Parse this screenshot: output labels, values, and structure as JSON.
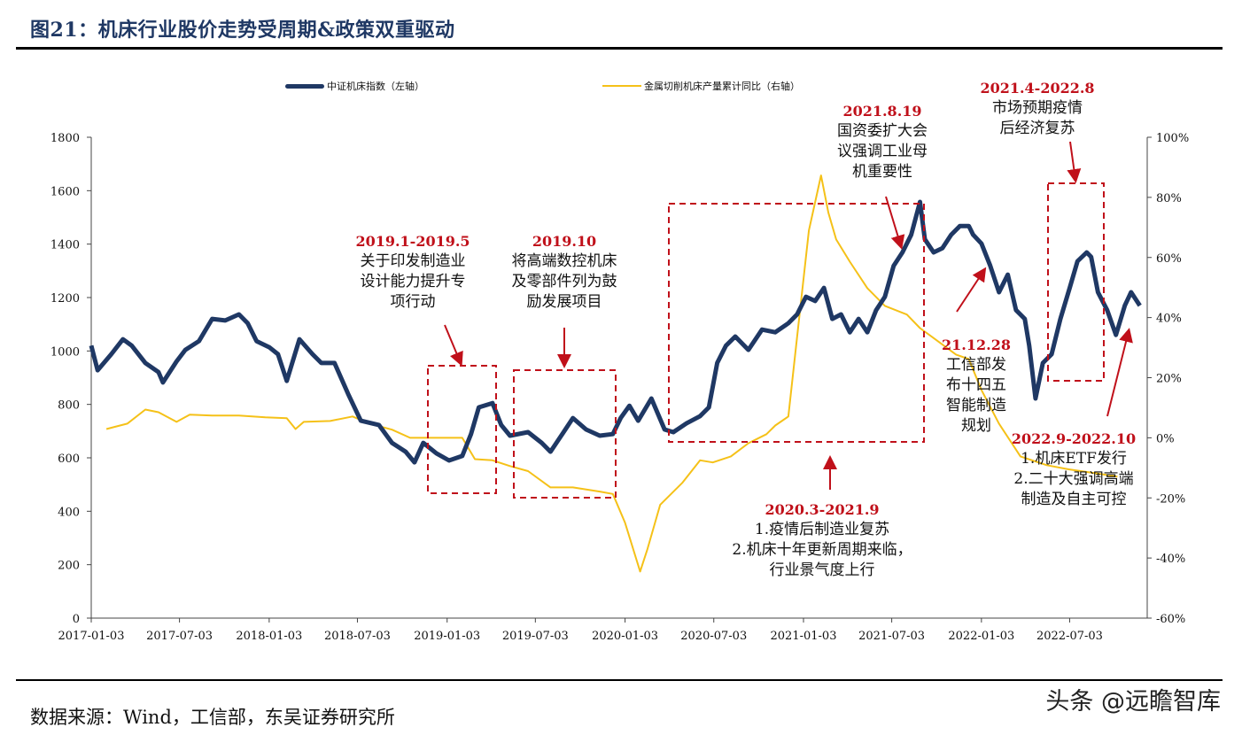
{
  "title": "图21：机床行业股价走势受周期&政策双重驱动",
  "source": "数据来源：Wind，工信部，东吴证券研究所",
  "watermark": "头条 @远瞻智库",
  "colors": {
    "index": "#1f3864",
    "production": "#f5c118",
    "annotation": "#c0101a",
    "title": "#1f3864"
  },
  "chart_data": {
    "type": "line",
    "title": "",
    "legend_position": "top",
    "grid": false,
    "x_ticks": [
      "2017-01-03",
      "2017-07-03",
      "2018-01-03",
      "2018-07-03",
      "2019-01-03",
      "2019-07-03",
      "2020-01-03",
      "2020-07-03",
      "2021-01-03",
      "2021-07-03",
      "2022-01-03",
      "2022-07-03"
    ],
    "y_left": {
      "range": [
        0,
        1800
      ],
      "ticks": [
        "0",
        "200",
        "400",
        "600",
        "800",
        "1000",
        "1200",
        "1400",
        "1600",
        "1800"
      ]
    },
    "y_right": {
      "range": [
        -60,
        100
      ],
      "unit": "%",
      "ticks": [
        "-60%",
        "-40%",
        "-20%",
        "0%",
        "20%",
        "40%",
        "60%",
        "80%",
        "100%"
      ]
    },
    "series": [
      {
        "name": "中证机床指数（左轴）",
        "axis": "left",
        "color": "#1f3864",
        "points": [
          [
            "2017-01-03",
            1020
          ],
          [
            "2017-01-16",
            928
          ],
          [
            "2017-02-13",
            988
          ],
          [
            "2017-03-09",
            1044
          ],
          [
            "2017-03-27",
            1020
          ],
          [
            "2017-04-24",
            955
          ],
          [
            "2017-05-21",
            921
          ],
          [
            "2017-05-30",
            882
          ],
          [
            "2017-06-27",
            961
          ],
          [
            "2017-07-15",
            1004
          ],
          [
            "2017-08-12",
            1037
          ],
          [
            "2017-09-08",
            1120
          ],
          [
            "2017-10-05",
            1114
          ],
          [
            "2017-11-02",
            1137
          ],
          [
            "2017-11-20",
            1104
          ],
          [
            "2017-12-08",
            1037
          ],
          [
            "2018-01-03",
            1014
          ],
          [
            "2018-01-21",
            988
          ],
          [
            "2018-02-08",
            888
          ],
          [
            "2018-03-06",
            1044
          ],
          [
            "2018-04-02",
            988
          ],
          [
            "2018-04-20",
            955
          ],
          [
            "2018-05-17",
            955
          ],
          [
            "2018-06-14",
            839
          ],
          [
            "2018-07-10",
            739
          ],
          [
            "2018-08-16",
            723
          ],
          [
            "2018-09-12",
            656
          ],
          [
            "2018-10-10",
            623
          ],
          [
            "2018-10-28",
            583
          ],
          [
            "2018-11-15",
            656
          ],
          [
            "2018-12-12",
            617
          ],
          [
            "2019-01-07",
            590
          ],
          [
            "2019-02-03",
            607
          ],
          [
            "2019-02-21",
            689
          ],
          [
            "2019-03-09",
            789
          ],
          [
            "2019-04-06",
            805
          ],
          [
            "2019-04-24",
            723
          ],
          [
            "2019-05-12",
            683
          ],
          [
            "2019-06-18",
            696
          ],
          [
            "2019-07-16",
            656
          ],
          [
            "2019-08-03",
            623
          ],
          [
            "2019-08-30",
            696
          ],
          [
            "2019-09-18",
            749
          ],
          [
            "2019-10-15",
            706
          ],
          [
            "2019-11-12",
            683
          ],
          [
            "2019-12-09",
            689
          ],
          [
            "2019-12-25",
            749
          ],
          [
            "2020-01-12",
            795
          ],
          [
            "2020-01-30",
            739
          ],
          [
            "2020-02-26",
            822
          ],
          [
            "2020-03-24",
            706
          ],
          [
            "2020-04-11",
            696
          ],
          [
            "2020-05-08",
            729
          ],
          [
            "2020-06-05",
            756
          ],
          [
            "2020-06-23",
            789
          ],
          [
            "2020-07-10",
            955
          ],
          [
            "2020-07-28",
            1020
          ],
          [
            "2020-08-16",
            1054
          ],
          [
            "2020-09-12",
            1004
          ],
          [
            "2020-10-10",
            1080
          ],
          [
            "2020-11-06",
            1070
          ],
          [
            "2020-12-03",
            1104
          ],
          [
            "2020-12-21",
            1137
          ],
          [
            "2021-01-08",
            1203
          ],
          [
            "2021-01-27",
            1187
          ],
          [
            "2021-02-14",
            1236
          ],
          [
            "2021-03-03",
            1120
          ],
          [
            "2021-03-21",
            1137
          ],
          [
            "2021-04-08",
            1070
          ],
          [
            "2021-04-26",
            1120
          ],
          [
            "2021-05-14",
            1070
          ],
          [
            "2021-06-01",
            1153
          ],
          [
            "2021-06-19",
            1203
          ],
          [
            "2021-07-07",
            1319
          ],
          [
            "2021-07-25",
            1369
          ],
          [
            "2021-08-12",
            1435
          ],
          [
            "2021-08-30",
            1558
          ],
          [
            "2021-09-09",
            1418
          ],
          [
            "2021-09-27",
            1369
          ],
          [
            "2021-10-15",
            1385
          ],
          [
            "2021-11-02",
            1435
          ],
          [
            "2021-11-20",
            1468
          ],
          [
            "2021-12-08",
            1468
          ],
          [
            "2021-12-17",
            1435
          ],
          [
            "2022-01-03",
            1402
          ],
          [
            "2022-01-21",
            1319
          ],
          [
            "2022-02-08",
            1220
          ],
          [
            "2022-02-26",
            1286
          ],
          [
            "2022-03-15",
            1153
          ],
          [
            "2022-04-02",
            1120
          ],
          [
            "2022-04-11",
            1020
          ],
          [
            "2022-04-24",
            822
          ],
          [
            "2022-05-09",
            955
          ],
          [
            "2022-05-27",
            988
          ],
          [
            "2022-06-14",
            1120
          ],
          [
            "2022-07-03",
            1236
          ],
          [
            "2022-07-19",
            1336
          ],
          [
            "2022-08-07",
            1369
          ],
          [
            "2022-08-16",
            1352
          ],
          [
            "2022-08-30",
            1220
          ],
          [
            "2022-09-18",
            1153
          ],
          [
            "2022-10-06",
            1060
          ],
          [
            "2022-10-24",
            1170
          ],
          [
            "2022-11-06",
            1220
          ],
          [
            "2022-11-24",
            1170
          ]
        ]
      },
      {
        "name": "金属切削机床产量累计同比（右轴）",
        "axis": "right",
        "color": "#f5c118",
        "points": [
          [
            "2017-02-03",
            2.9
          ],
          [
            "2017-03-18",
            4.7
          ],
          [
            "2017-04-24",
            9.4
          ],
          [
            "2017-05-21",
            8.5
          ],
          [
            "2017-06-27",
            5.3
          ],
          [
            "2017-07-24",
            7.7
          ],
          [
            "2017-09-08",
            7.4
          ],
          [
            "2017-11-02",
            7.4
          ],
          [
            "2017-12-26",
            6.8
          ],
          [
            "2018-02-08",
            6.5
          ],
          [
            "2018-02-26",
            2.9
          ],
          [
            "2018-03-15",
            5.3
          ],
          [
            "2018-05-08",
            5.6
          ],
          [
            "2018-06-23",
            7.1
          ],
          [
            "2018-07-28",
            4.7
          ],
          [
            "2018-09-12",
            2.7
          ],
          [
            "2018-10-19",
            0
          ],
          [
            "2018-12-21",
            0
          ],
          [
            "2019-02-03",
            0
          ],
          [
            "2019-03-01",
            -7.1
          ],
          [
            "2019-04-06",
            -7.5
          ],
          [
            "2019-05-12",
            -9.4
          ],
          [
            "2019-06-18",
            -11.1
          ],
          [
            "2019-08-03",
            -16.5
          ],
          [
            "2019-09-18",
            -16.5
          ],
          [
            "2019-11-12",
            -17.9
          ],
          [
            "2019-12-09",
            -18.7
          ],
          [
            "2020-01-03",
            -28.3
          ],
          [
            "2020-02-03",
            -44.5
          ],
          [
            "2020-02-18",
            -37
          ],
          [
            "2020-03-15",
            -22.3
          ],
          [
            "2020-04-30",
            -14.9
          ],
          [
            "2020-06-05",
            -7.5
          ],
          [
            "2020-07-01",
            -8.2
          ],
          [
            "2020-08-07",
            -6.2
          ],
          [
            "2020-09-12",
            -1.8
          ],
          [
            "2020-10-19",
            1.2
          ],
          [
            "2020-11-06",
            4.1
          ],
          [
            "2020-12-03",
            7.1
          ],
          [
            "2020-12-21",
            33.6
          ],
          [
            "2021-01-14",
            69
          ],
          [
            "2021-02-08",
            87.3
          ],
          [
            "2021-02-23",
            74.9
          ],
          [
            "2021-03-11",
            66
          ],
          [
            "2021-04-08",
            58.6
          ],
          [
            "2021-05-14",
            49.8
          ],
          [
            "2021-06-19",
            43.9
          ],
          [
            "2021-08-03",
            41
          ],
          [
            "2021-08-30",
            36.5
          ],
          [
            "2021-10-06",
            32.1
          ],
          [
            "2021-11-12",
            27.7
          ],
          [
            "2021-12-08",
            26.2
          ],
          [
            "2022-01-03",
            15.9
          ],
          [
            "2022-02-08",
            4.7
          ],
          [
            "2022-03-24",
            -6.2
          ],
          [
            "2022-05-17",
            -9.1
          ],
          [
            "2022-07-01",
            -10.5
          ],
          [
            "2022-09-03",
            -12.0
          ],
          [
            "2022-10-09",
            -12.9
          ]
        ]
      }
    ],
    "annotations": [
      {
        "heading": "2019.1-2019.5",
        "lines": [
          "关于印发制造业",
          "设计能力提升专",
          "项行动"
        ]
      },
      {
        "heading": "2019.10",
        "lines": [
          "将高端数控机床",
          "及零部件列为鼓",
          "励发展项目"
        ]
      },
      {
        "heading": "2021.8.19",
        "lines": [
          "国资委扩大会",
          "议强调工业母",
          "机重要性"
        ]
      },
      {
        "heading": "2021.4-2022.8",
        "lines": [
          "市场预期疫情",
          "后经济复苏"
        ]
      },
      {
        "heading": "21.12.28",
        "lines": [
          "工信部发",
          "布十四五",
          "智能制造",
          "规划"
        ]
      },
      {
        "heading": "2022.9-2022.10",
        "lines": [
          "1.机床ETF发行",
          "2.二十大强调高端",
          "制造及自主可控"
        ]
      },
      {
        "heading": "2020.3-2021.9",
        "lines": [
          "1.疫情后制造业复苏",
          "2.机床十年更新周期来临，",
          "行业景气度上行"
        ]
      }
    ]
  }
}
